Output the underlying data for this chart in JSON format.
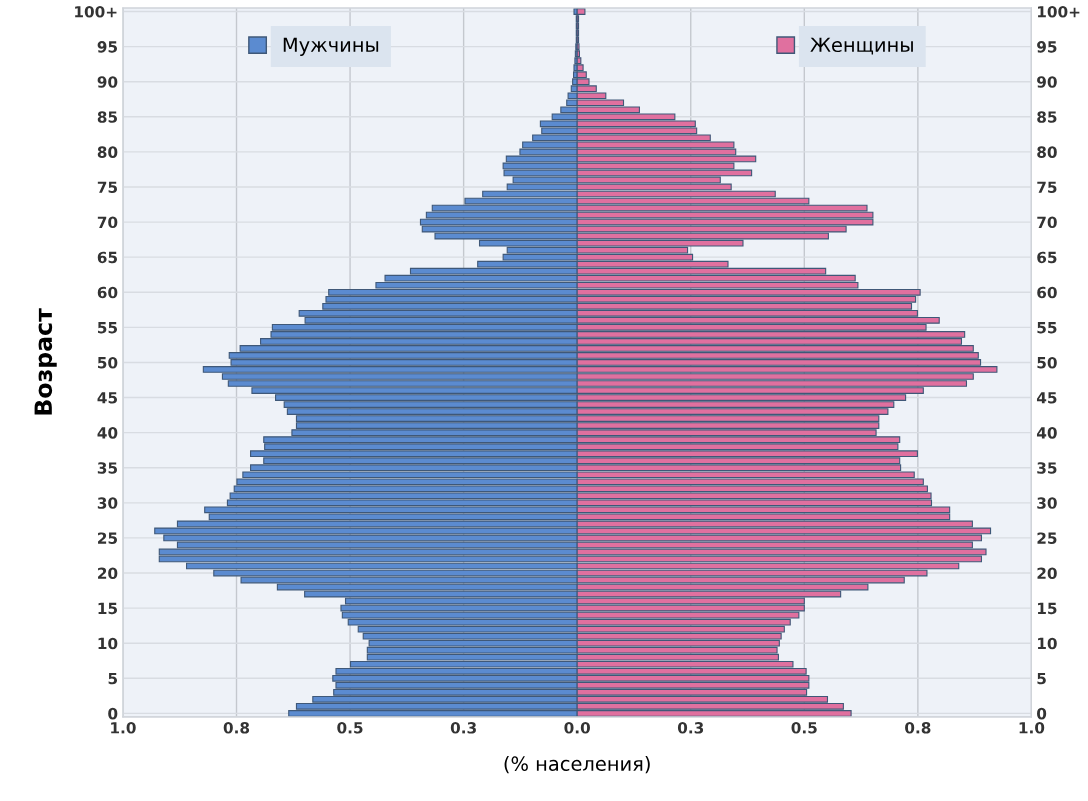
{
  "chart_data": {
    "type": "bar",
    "orientation": "horizontal",
    "xlabel": "(% населения)",
    "ylabel": "Возраст",
    "categories": [
      "100+",
      null,
      null,
      null,
      null,
      "95",
      null,
      null,
      null,
      null,
      "90",
      null,
      null,
      null,
      null,
      "85",
      null,
      null,
      null,
      null,
      "80",
      null,
      null,
      null,
      null,
      "75",
      null,
      null,
      null,
      null,
      "70",
      null,
      null,
      null,
      null,
      "65",
      null,
      null,
      null,
      null,
      "60",
      null,
      null,
      null,
      null,
      "55",
      null,
      null,
      null,
      null,
      "50",
      null,
      null,
      null,
      null,
      "45",
      null,
      null,
      null,
      null,
      "40",
      null,
      null,
      null,
      null,
      "35",
      null,
      null,
      null,
      null,
      "30",
      null,
      null,
      null,
      null,
      "25",
      null,
      null,
      null,
      null,
      "20",
      null,
      null,
      null,
      null,
      "15",
      null,
      null,
      null,
      null,
      "10",
      null,
      null,
      null,
      null,
      "5",
      null,
      null,
      null,
      null,
      "0"
    ],
    "series": [
      {
        "name": "Мужчины",
        "color": "#5b8bd0",
        "values": [
          -0.007,
          -0.002,
          -0.002,
          -0.002,
          -0.002,
          -0.003,
          -0.004,
          -0.005,
          -0.007,
          -0.008,
          -0.01,
          -0.013,
          -0.02,
          -0.023,
          -0.036,
          -0.055,
          -0.081,
          -0.078,
          -0.098,
          -0.12,
          -0.126,
          -0.156,
          -0.163,
          -0.161,
          -0.141,
          -0.154,
          -0.208,
          -0.247,
          -0.319,
          -0.332,
          -0.345,
          -0.341,
          -0.313,
          -0.215,
          -0.154,
          -0.163,
          -0.219,
          -0.367,
          -0.423,
          -0.443,
          -0.547,
          -0.553,
          -0.56,
          -0.612,
          -0.599,
          -0.671,
          -0.674,
          -0.697,
          -0.742,
          -0.766,
          -0.762,
          -0.823,
          -0.781,
          -0.768,
          -0.716,
          -0.664,
          -0.645,
          -0.638,
          -0.618,
          -0.618,
          -0.628,
          -0.69,
          -0.688,
          -0.719,
          -0.69,
          -0.719,
          -0.736,
          -0.749,
          -0.755,
          -0.764,
          -0.77,
          -0.82,
          -0.81,
          -0.88,
          -0.93,
          -0.91,
          -0.88,
          -0.92,
          -0.92,
          -0.86,
          -0.8,
          -0.74,
          -0.66,
          -0.6,
          -0.51,
          -0.52,
          -0.517,
          -0.504,
          -0.482,
          -0.471,
          -0.458,
          -0.462,
          -0.462,
          -0.499,
          -0.531,
          -0.538,
          -0.531,
          -0.536,
          -0.582,
          -0.618,
          -0.635
        ]
      },
      {
        "name": "Женщины",
        "color": "#e0709f",
        "values": [
          0.017,
          0.003,
          0.003,
          0.003,
          0.003,
          0.004,
          0.005,
          0.008,
          0.013,
          0.02,
          0.026,
          0.042,
          0.063,
          0.102,
          0.137,
          0.215,
          0.26,
          0.263,
          0.293,
          0.345,
          0.349,
          0.393,
          0.345,
          0.384,
          0.315,
          0.339,
          0.436,
          0.51,
          0.638,
          0.651,
          0.651,
          0.592,
          0.553,
          0.365,
          0.243,
          0.254,
          0.332,
          0.547,
          0.612,
          0.618,
          0.755,
          0.745,
          0.736,
          0.749,
          0.797,
          0.768,
          0.853,
          0.846,
          0.872,
          0.883,
          0.888,
          0.924,
          0.872,
          0.857,
          0.762,
          0.723,
          0.697,
          0.684,
          0.664,
          0.664,
          0.658,
          0.71,
          0.706,
          0.749,
          0.71,
          0.712,
          0.742,
          0.762,
          0.771,
          0.779,
          0.78,
          0.82,
          0.82,
          0.87,
          0.91,
          0.89,
          0.87,
          0.9,
          0.89,
          0.84,
          0.77,
          0.72,
          0.64,
          0.58,
          0.5,
          0.5,
          0.488,
          0.469,
          0.456,
          0.449,
          0.445,
          0.44,
          0.443,
          0.475,
          0.504,
          0.51,
          0.51,
          0.505,
          0.551,
          0.586,
          0.603
        ]
      }
    ],
    "xlim": [
      -1,
      1
    ],
    "xticks": [
      {
        "value": -1,
        "label": "1.0"
      },
      {
        "value": -0.75,
        "label": "0.8"
      },
      {
        "value": -0.5,
        "label": "0.5"
      },
      {
        "value": -0.25,
        "label": "0.3"
      },
      {
        "value": 0,
        "label": "0.0"
      },
      {
        "value": 0.25,
        "label": "0.3"
      },
      {
        "value": 0.5,
        "label": "0.5"
      },
      {
        "value": 0.75,
        "label": "0.8"
      },
      {
        "value": 1,
        "label": "1.0"
      }
    ],
    "grid": true,
    "legend": "top",
    "stacked": true
  }
}
